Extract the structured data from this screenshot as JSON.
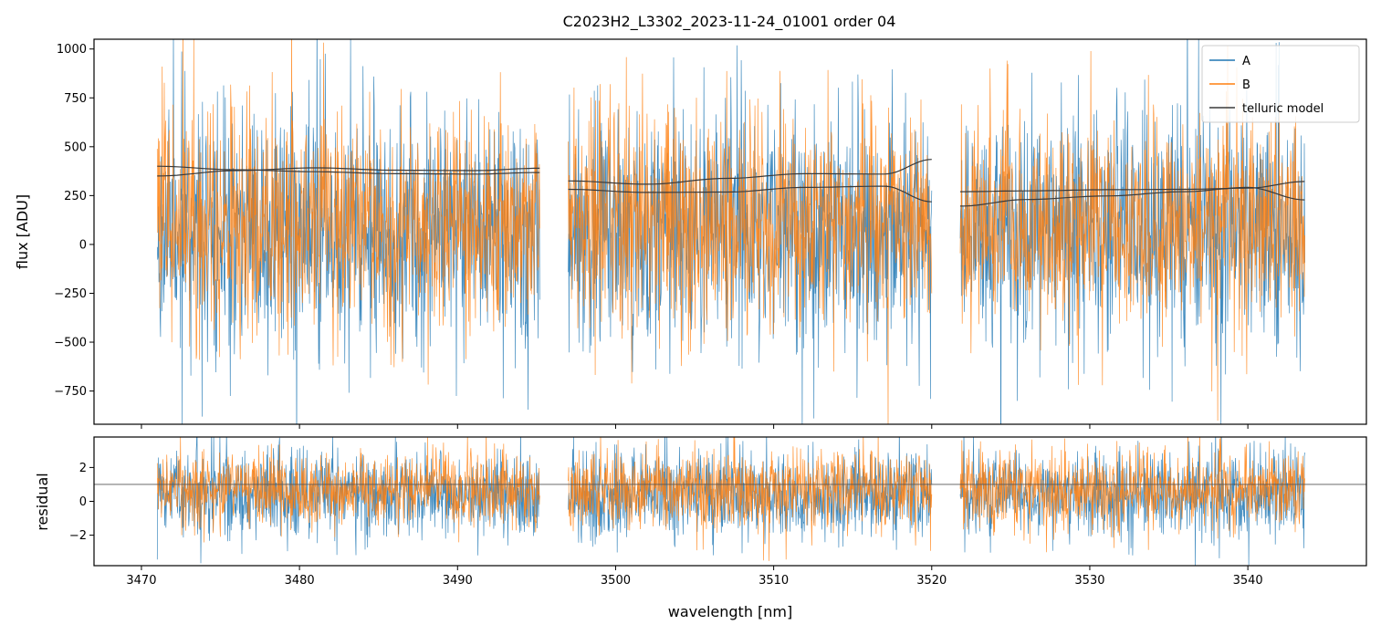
{
  "chart_data": [
    {
      "panel": "flux",
      "type": "line",
      "title": "C2023H2_L3302_2023-11-24_01001  order 04",
      "xlabel": "",
      "ylabel": "flux [ADU]",
      "xlim": [
        3467.0,
        3547.5
      ],
      "ylim": [
        -920,
        1050
      ],
      "yticks": [
        -750,
        -500,
        -250,
        0,
        250,
        500,
        750,
        1000
      ],
      "yticklabels": [
        "−750",
        "−500",
        "−250",
        "0",
        "250",
        "500",
        "750",
        "1000"
      ],
      "xticks": [
        3470,
        3480,
        3490,
        3500,
        3510,
        3520,
        3530,
        3540
      ],
      "segments": [
        [
          3471.0,
          3495.2
        ],
        [
          3497.0,
          3520.0
        ],
        [
          3521.8,
          3543.6
        ]
      ],
      "legend": {
        "placement": "top-right",
        "entries": [
          "A",
          "B",
          "telluric model"
        ]
      },
      "series": [
        {
          "name": "A",
          "color": "#1f77b4",
          "noise": {
            "center": 70,
            "spread": 300,
            "seed": 11
          }
        },
        {
          "name": "B",
          "color": "#ff7f0e",
          "noise": {
            "center": 110,
            "spread": 270,
            "seed": 29
          }
        },
        {
          "name": "telluric model",
          "color": "#3a3a3a",
          "curves": [
            {
              "x": [
                3471.0,
                3476.0,
                3481.0,
                3486.0,
                3491.0,
                3495.2
              ],
              "y": [
                400,
                382,
                372,
                362,
                360,
                368
              ]
            },
            {
              "x": [
                3471.0,
                3476.0,
                3481.0,
                3486.0,
                3491.0,
                3495.2
              ],
              "y": [
                350,
                378,
                392,
                380,
                378,
                390
              ]
            },
            {
              "x": [
                3497.0,
                3502.0,
                3507.0,
                3512.0,
                3517.0,
                3520.0
              ],
              "y": [
                325,
                308,
                338,
                362,
                360,
                435
              ]
            },
            {
              "x": [
                3497.0,
                3502.0,
                3507.0,
                3512.0,
                3517.0,
                3520.0
              ],
              "y": [
                282,
                266,
                268,
                292,
                298,
                218
              ]
            },
            {
              "x": [
                3521.8,
                3526.0,
                3531.0,
                3536.0,
                3540.0,
                3543.6
              ],
              "y": [
                270,
                274,
                280,
                282,
                288,
                322
              ]
            },
            {
              "x": [
                3521.8,
                3526.0,
                3531.0,
                3536.0,
                3540.0,
                3543.6
              ],
              "y": [
                196,
                230,
                248,
                270,
                292,
                228
              ]
            }
          ]
        }
      ]
    },
    {
      "panel": "residual",
      "type": "line",
      "xlabel": "wavelength [nm]",
      "ylabel": "residual",
      "xlim": [
        3467.0,
        3547.5
      ],
      "ylim": [
        -3.8,
        3.8
      ],
      "yticks": [
        -2,
        0,
        2
      ],
      "yticklabels": [
        "−2",
        "0",
        "2"
      ],
      "xticks": [
        3470,
        3480,
        3490,
        3500,
        3510,
        3520,
        3530,
        3540
      ],
      "xticklabels": [
        "3470",
        "3480",
        "3490",
        "3500",
        "3510",
        "3520",
        "3530",
        "3540"
      ],
      "reference_line": 1.0,
      "segments": [
        [
          3471.0,
          3495.2
        ],
        [
          3497.0,
          3520.0
        ],
        [
          3521.8,
          3543.6
        ]
      ],
      "series": [
        {
          "name": "A",
          "color": "#1f77b4",
          "noise": {
            "center": 0.4,
            "spread": 1.2,
            "seed": 47
          }
        },
        {
          "name": "B",
          "color": "#ff7f0e",
          "noise": {
            "center": 0.7,
            "spread": 1.1,
            "seed": 53
          }
        }
      ]
    }
  ],
  "colors": {
    "A": "#1f77b4",
    "B": "#ff7f0e",
    "model": "#3a3a3a",
    "axes": "#000000"
  }
}
